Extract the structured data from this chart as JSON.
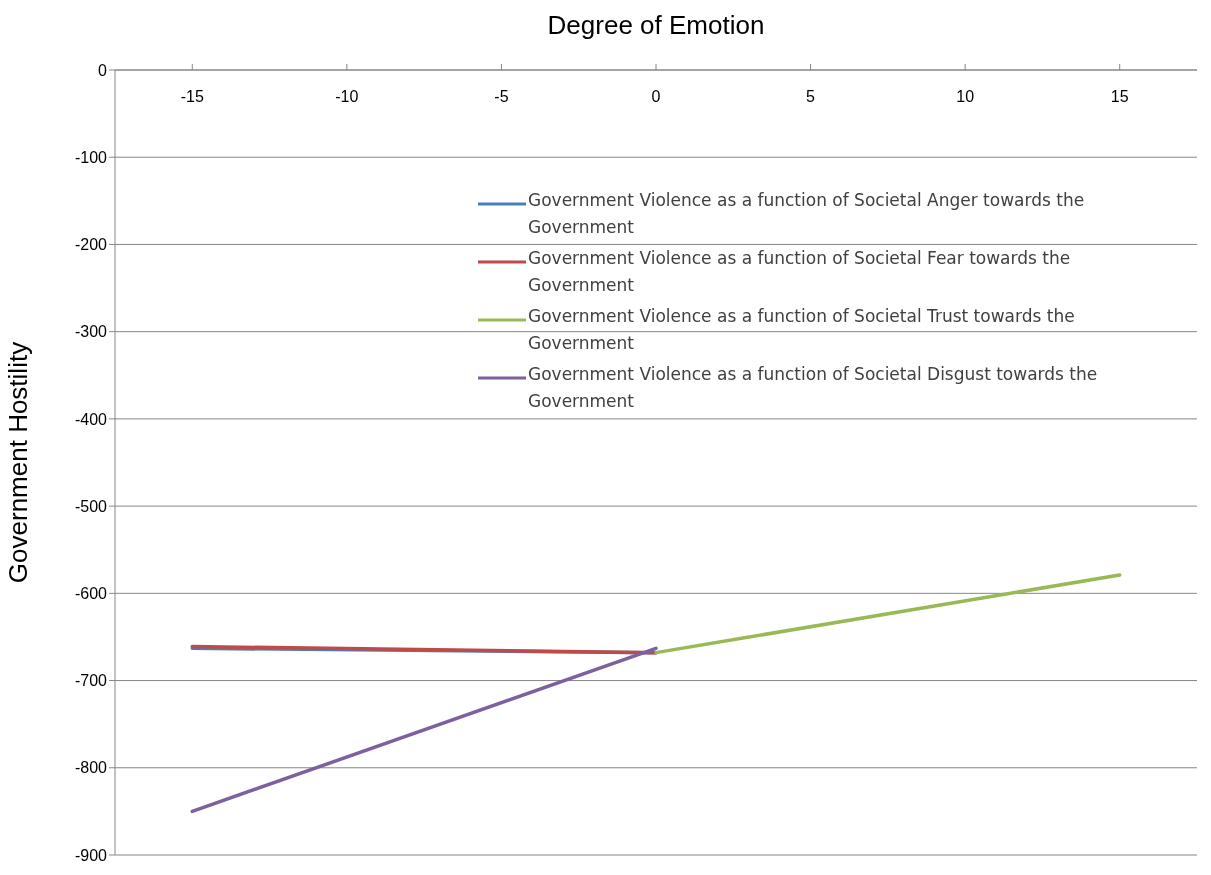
{
  "chart_data": {
    "type": "line",
    "xlabel": "Degree of Emotion",
    "ylabel": "Government Hostility",
    "xlim": [
      -17.5,
      17.5
    ],
    "xticks": [
      -15,
      -10,
      -5,
      0,
      5,
      10,
      15
    ],
    "ylim": [
      -900,
      0
    ],
    "yticks": [
      -900,
      -800,
      -700,
      -600,
      -500,
      -400,
      -300,
      -200,
      -100,
      0
    ],
    "grid": "y",
    "legend": "right",
    "marker": "none",
    "series": [
      {
        "name": "Government Violence as a function of Societal Anger towards the Government",
        "color": "#4a7ebb",
        "x": [
          -15,
          0
        ],
        "values": [
          -663,
          -668
        ]
      },
      {
        "name": "Government Violence as a function of Societal Fear towards the Government",
        "color": "#be4b48",
        "x": [
          -15,
          0
        ],
        "values": [
          -661,
          -668
        ]
      },
      {
        "name": "Government Violence as a function of Societal Trust towards the Government",
        "color": "#98b954",
        "x": [
          0,
          15
        ],
        "values": [
          -668,
          -579
        ]
      },
      {
        "name": "Government Violence as a function of Societal Disgust towards the Government",
        "color": "#7d60a0",
        "x": [
          -15,
          0
        ],
        "values": [
          -850,
          -663
        ]
      }
    ]
  }
}
